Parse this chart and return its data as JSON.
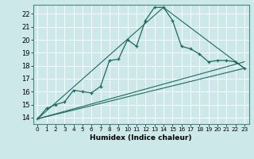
{
  "title": "",
  "xlabel": "Humidex (Indice chaleur)",
  "ylabel": "",
  "xlim": [
    -0.5,
    23.5
  ],
  "ylim": [
    13.5,
    22.7
  ],
  "xticks": [
    0,
    1,
    2,
    3,
    4,
    5,
    6,
    7,
    8,
    9,
    10,
    11,
    12,
    13,
    14,
    15,
    16,
    17,
    18,
    19,
    20,
    21,
    22,
    23
  ],
  "yticks": [
    14,
    15,
    16,
    17,
    18,
    19,
    20,
    21,
    22
  ],
  "bg_color": "#cde8e8",
  "line_color": "#1a6b60",
  "grid_color": "#ffffff",
  "series_main": {
    "x": [
      0,
      1,
      2,
      3,
      4,
      5,
      6,
      7,
      8,
      9,
      10,
      11,
      12,
      13,
      14,
      15,
      16,
      17,
      18,
      19,
      20,
      21,
      22,
      23
    ],
    "y": [
      13.9,
      14.7,
      15.0,
      15.2,
      16.1,
      16.0,
      15.9,
      16.4,
      18.4,
      18.5,
      20.0,
      19.5,
      21.5,
      22.5,
      22.5,
      21.5,
      19.5,
      19.3,
      18.9,
      18.3,
      18.4,
      18.4,
      18.3,
      17.8
    ]
  },
  "series_refs": [
    {
      "x": [
        0,
        23
      ],
      "y": [
        13.9,
        17.8
      ]
    },
    {
      "x": [
        0,
        14,
        23
      ],
      "y": [
        13.9,
        22.5,
        17.8
      ]
    },
    {
      "x": [
        0,
        23
      ],
      "y": [
        13.9,
        18.3
      ]
    }
  ]
}
